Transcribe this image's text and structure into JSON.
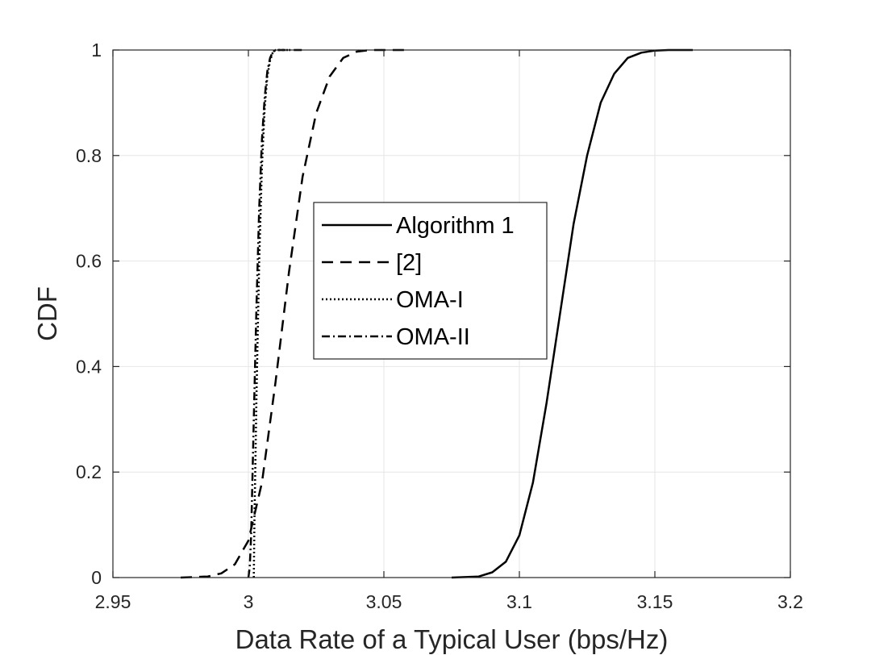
{
  "chart_data": {
    "type": "line",
    "title": "",
    "xlabel": "Data Rate of a Typical User (bps/Hz)",
    "ylabel": "CDF",
    "xlim": [
      2.95,
      3.2
    ],
    "ylim": [
      0,
      1
    ],
    "xticks": [
      2.95,
      3,
      3.05,
      3.1,
      3.15,
      3.2
    ],
    "xtick_labels": [
      "2.95",
      "3",
      "3.05",
      "3.1",
      "3.15",
      "3.2"
    ],
    "yticks": [
      0,
      0.2,
      0.4,
      0.6,
      0.8,
      1
    ],
    "ytick_labels": [
      "0",
      "0.2",
      "0.4",
      "0.6",
      "0.8",
      "1"
    ],
    "grid": true,
    "legend_position": "center-left",
    "series": [
      {
        "name": "Algorithm 1",
        "style": "solid",
        "color": "#000000",
        "x": [
          3.075,
          3.085,
          3.09,
          3.095,
          3.1,
          3.105,
          3.11,
          3.115,
          3.12,
          3.125,
          3.13,
          3.135,
          3.14,
          3.145,
          3.15,
          3.155,
          3.164
        ],
        "y": [
          0,
          0.002,
          0.01,
          0.03,
          0.08,
          0.18,
          0.33,
          0.5,
          0.67,
          0.8,
          0.9,
          0.955,
          0.985,
          0.995,
          0.999,
          1,
          1
        ]
      },
      {
        "name": "[2]",
        "style": "dashed",
        "color": "#000000",
        "x": [
          2.975,
          2.985,
          2.99,
          2.995,
          3,
          3.005,
          3.01,
          3.015,
          3.02,
          3.025,
          3.03,
          3.035,
          3.04,
          3.045,
          3.05,
          3.06
        ],
        "y": [
          0,
          0.002,
          0.008,
          0.025,
          0.07,
          0.18,
          0.37,
          0.58,
          0.76,
          0.88,
          0.95,
          0.985,
          0.997,
          1,
          1,
          1
        ]
      },
      {
        "name": "OMA-I",
        "style": "dotted",
        "color": "#000000",
        "x": [
          3.002,
          3.0022,
          3.003,
          3.004,
          3.005,
          3.006,
          3.007,
          3.008,
          3.009,
          3.01,
          3.012,
          3.015
        ],
        "y": [
          0,
          0.1,
          0.35,
          0.6,
          0.78,
          0.89,
          0.95,
          0.98,
          0.995,
          1,
          1,
          1
        ]
      },
      {
        "name": "OMA-II",
        "style": "dashdot",
        "color": "#000000",
        "x": [
          3,
          3.0005,
          3.001,
          3.002,
          3.003,
          3.004,
          3.005,
          3.006,
          3.007,
          3.008,
          3.009,
          3.01,
          3.012,
          3.015,
          3.02
        ],
        "y": [
          0,
          0.02,
          0.08,
          0.3,
          0.52,
          0.7,
          0.83,
          0.91,
          0.96,
          0.985,
          0.996,
          1,
          1,
          1,
          1
        ]
      }
    ]
  }
}
